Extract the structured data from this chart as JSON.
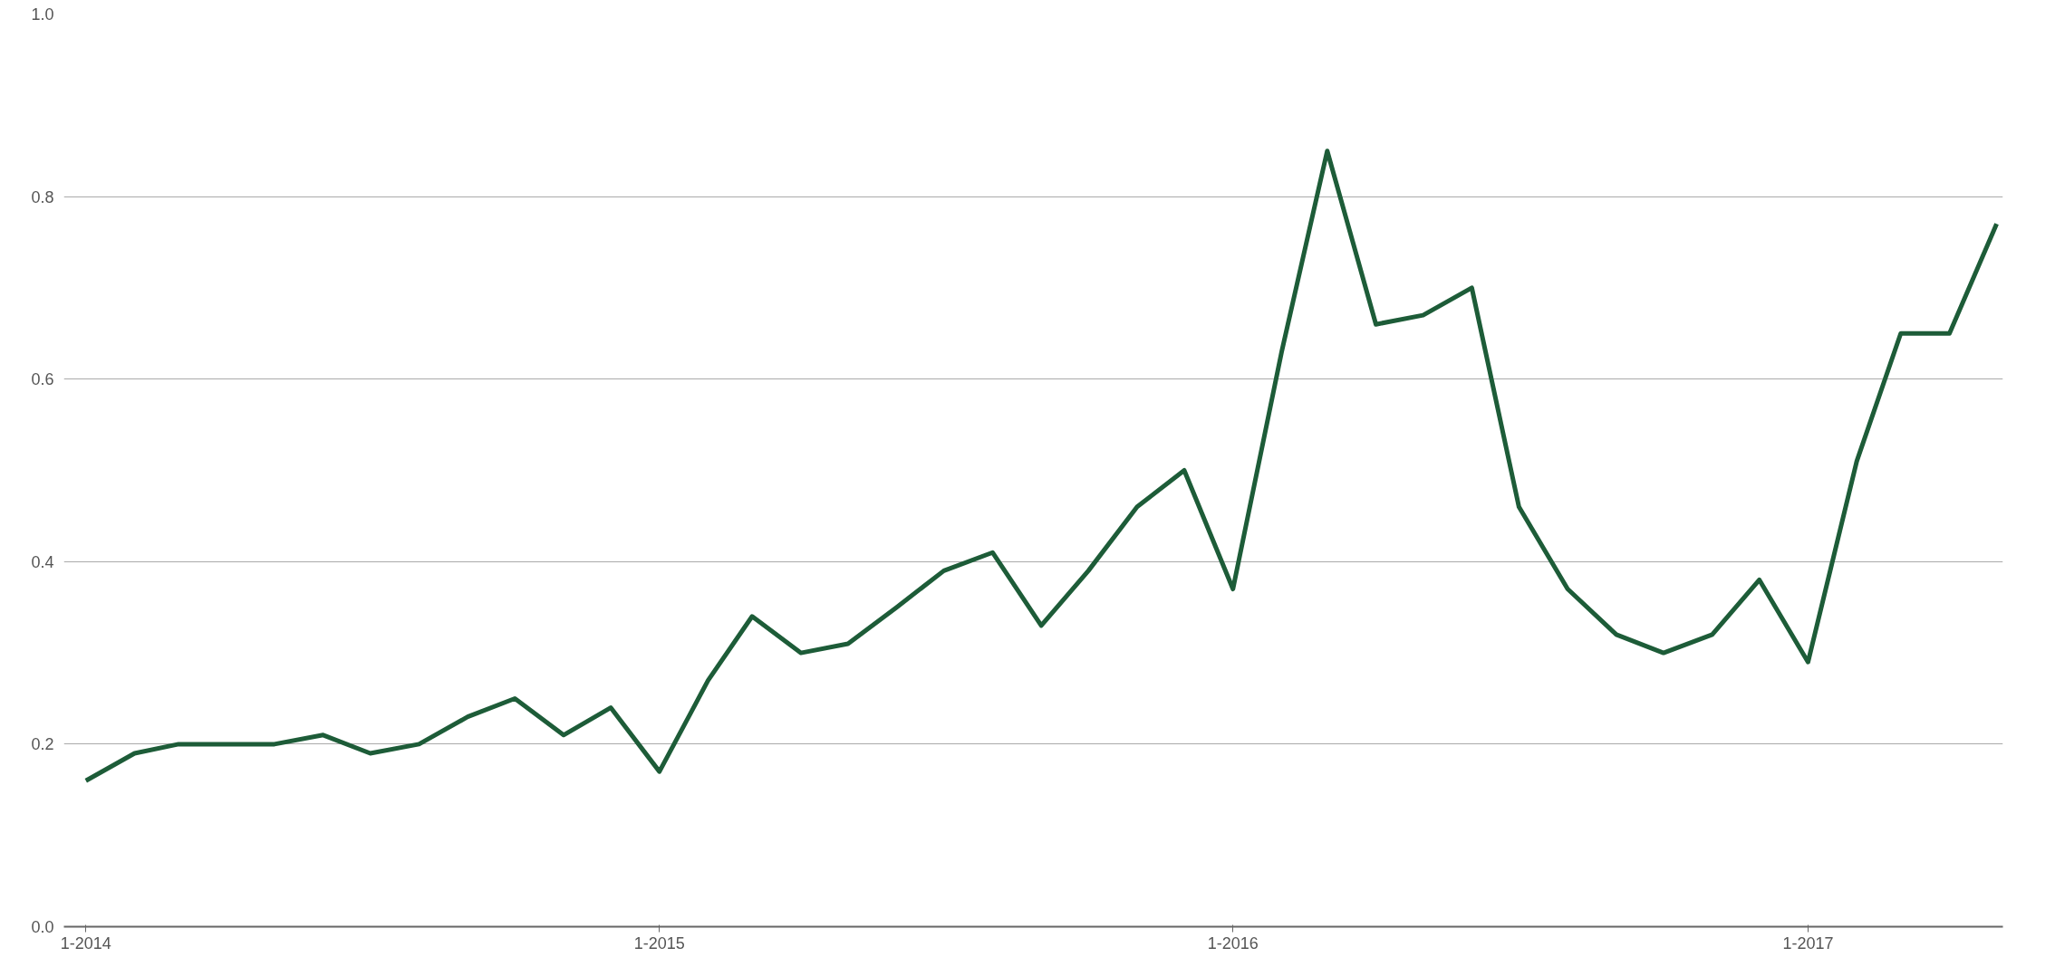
{
  "chart_data": {
    "type": "line",
    "x": [
      "2014-01",
      "2014-02",
      "2014-03",
      "2014-04",
      "2014-05",
      "2014-06",
      "2014-07",
      "2014-08",
      "2014-09",
      "2014-10",
      "2014-11",
      "2014-12",
      "2015-01",
      "2015-02",
      "2015-03",
      "2015-04",
      "2015-05",
      "2015-06",
      "2015-07",
      "2015-08",
      "2015-09",
      "2015-10",
      "2015-11",
      "2015-12",
      "2016-01",
      "2016-02",
      "2016-03",
      "2016-04",
      "2016-05",
      "2016-06",
      "2016-07",
      "2016-08",
      "2016-09",
      "2016-10",
      "2016-11",
      "2016-12",
      "2017-01",
      "2017-02",
      "2017-03",
      "2017-04",
      "2017-05"
    ],
    "series": [
      {
        "color": "#1d5c38",
        "values": [
          0.16,
          0.19,
          0.2,
          0.2,
          0.2,
          0.21,
          0.19,
          0.2,
          0.23,
          0.25,
          0.21,
          0.24,
          0.17,
          0.27,
          0.34,
          0.3,
          0.31,
          0.35,
          0.39,
          0.41,
          0.33,
          0.39,
          0.46,
          0.5,
          0.37,
          0.63,
          0.85,
          0.66,
          0.67,
          0.7,
          0.46,
          0.37,
          0.32,
          0.3,
          0.32,
          0.38,
          0.29,
          0.51,
          0.65,
          0.65,
          0.77
        ]
      }
    ],
    "xlim": [
      "2013-12-18",
      "2017-05-05"
    ],
    "xticks": [
      {
        "value": "2014-01",
        "label": "1-2014"
      },
      {
        "value": "2015-01",
        "label": "1-2015"
      },
      {
        "value": "2016-01",
        "label": "1-2016"
      },
      {
        "value": "2017-01",
        "label": "1-2017"
      }
    ],
    "ylim": [
      0,
      1
    ],
    "yticks": [
      {
        "value": 0,
        "label": "0.0"
      },
      {
        "value": 0.2,
        "label": "0.2"
      },
      {
        "value": 0.4,
        "label": "0.4"
      },
      {
        "value": 0.6,
        "label": "0.6"
      },
      {
        "value": 0.8,
        "label": "0.8"
      },
      {
        "value": 1,
        "label": "1.0"
      }
    ],
    "grid": "y",
    "line_style": "solid",
    "marker": "none"
  }
}
